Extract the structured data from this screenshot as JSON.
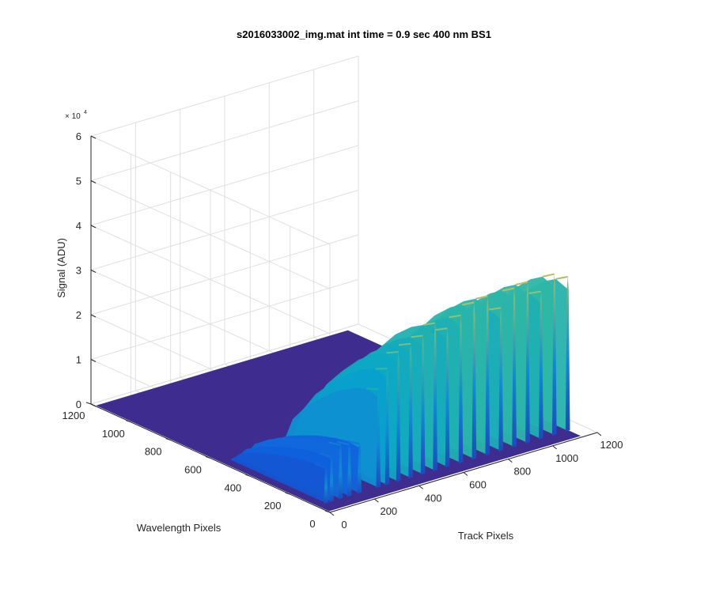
{
  "chart_data": {
    "type": "surface",
    "title": "s2016033002_img.mat int time = 0.9 sec  400 nm BS1",
    "xlabel": "Track Pixels",
    "ylabel": "Wavelength Pixels",
    "zlabel": "Signal (ADU)",
    "z_exponent": "× 10",
    "z_exponent_power": "4",
    "xlim": [
      0,
      1200
    ],
    "ylim": [
      0,
      1200
    ],
    "zlim": [
      0,
      60000
    ],
    "x_ticks": [
      "0",
      "200",
      "400",
      "600",
      "800",
      "1000",
      "1200"
    ],
    "y_ticks": [
      "0",
      "200",
      "400",
      "600",
      "800",
      "1000",
      "1200"
    ],
    "z_ticks": [
      "0",
      "1",
      "2",
      "3",
      "4",
      "5",
      "6"
    ],
    "grid": true,
    "colormap": [
      "#352a87",
      "#0f5cdd",
      "#1481d6",
      "#06a4ca",
      "#2eb7a4",
      "#87bf77",
      "#d1bb59",
      "#fec832",
      "#f9fb0e"
    ],
    "floor_color": "#3e2d8e",
    "peaks": [
      {
        "x": 45,
        "y": 70,
        "z": 8000
      },
      {
        "x": 70,
        "y": 70,
        "z": 10000
      },
      {
        "x": 110,
        "y": 70,
        "z": 12000
      },
      {
        "x": 150,
        "y": 70,
        "z": 11500
      },
      {
        "x": 195,
        "y": 70,
        "z": 11000
      },
      {
        "x": 280,
        "y": 70,
        "z": 22000
      },
      {
        "x": 320,
        "y": 70,
        "z": 26000
      },
      {
        "x": 370,
        "y": 70,
        "z": 29000
      },
      {
        "x": 425,
        "y": 70,
        "z": 30000
      },
      {
        "x": 480,
        "y": 70,
        "z": 31000
      },
      {
        "x": 535,
        "y": 70,
        "z": 33000
      },
      {
        "x": 590,
        "y": 70,
        "z": 31000
      },
      {
        "x": 650,
        "y": 70,
        "z": 33000
      },
      {
        "x": 710,
        "y": 70,
        "z": 35000
      },
      {
        "x": 770,
        "y": 70,
        "z": 35500
      },
      {
        "x": 830,
        "y": 70,
        "z": 32000
      },
      {
        "x": 890,
        "y": 70,
        "z": 35500
      },
      {
        "x": 950,
        "y": 70,
        "z": 36000
      },
      {
        "x": 1010,
        "y": 70,
        "z": 33000
      },
      {
        "x": 1070,
        "y": 70,
        "z": 36000
      },
      {
        "x": 1130,
        "y": 70,
        "z": 34500
      }
    ]
  }
}
